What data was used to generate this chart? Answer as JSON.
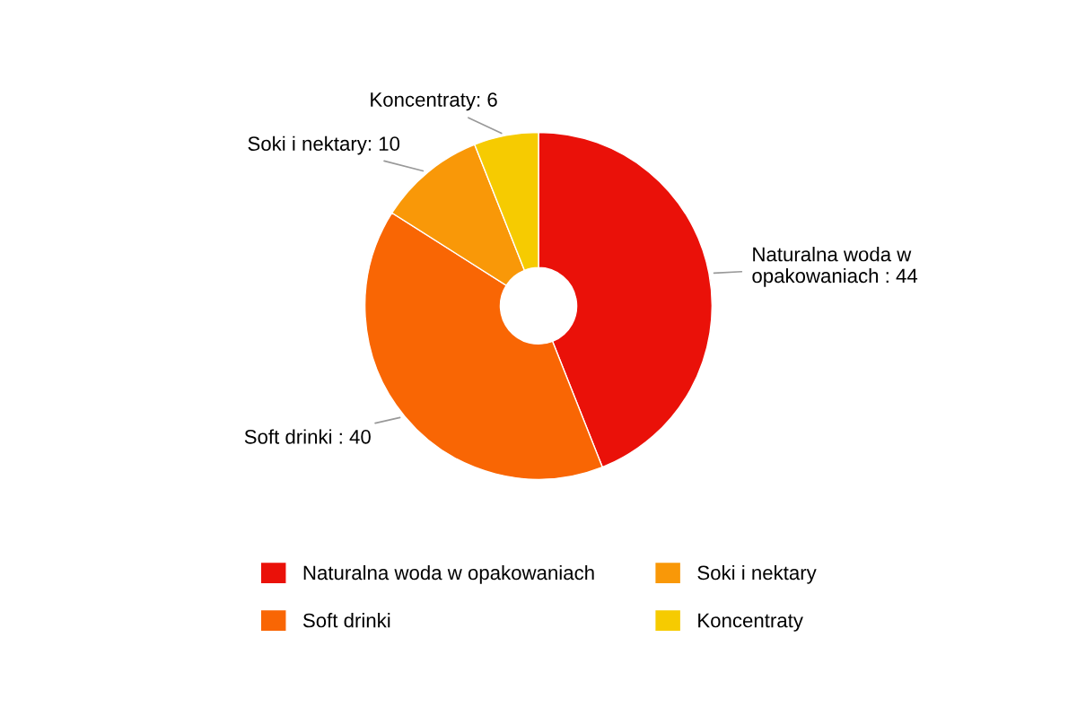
{
  "chart_data": {
    "type": "donut",
    "categories": [
      "Naturalna woda w opakowaniach",
      "Soft drinki",
      "Soki i nektary",
      "Koncentraty"
    ],
    "values": [
      44,
      40,
      10,
      6
    ],
    "colors": [
      "#ea1109",
      "#f96604",
      "#f99808",
      "#f6cb01"
    ],
    "value_labels": [
      "Naturalna woda w\nopakowaniach : 44",
      "Soft drinki : 40",
      "Soki i nektary: 10",
      "Koncentraty: 6"
    ],
    "legend": "bottom"
  }
}
